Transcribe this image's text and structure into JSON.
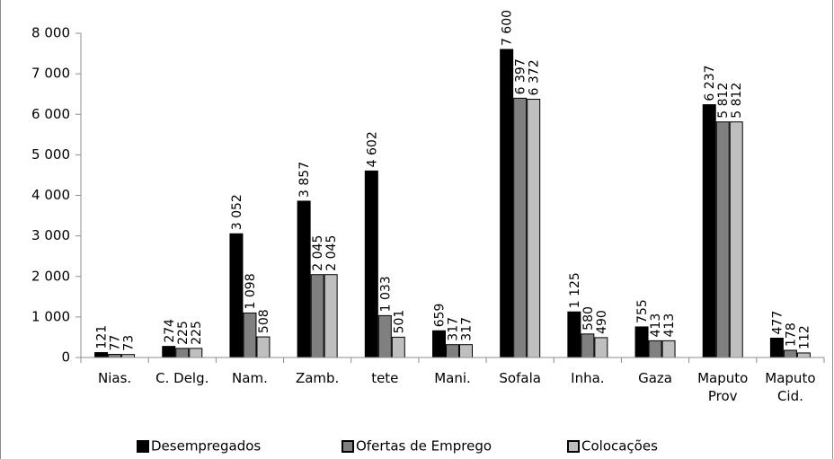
{
  "chart_data": {
    "type": "bar",
    "categories": [
      [
        "Nias."
      ],
      [
        "C. Delg."
      ],
      [
        "Nam."
      ],
      [
        "Zamb."
      ],
      [
        "tete"
      ],
      [
        "Mani."
      ],
      [
        "Sofala"
      ],
      [
        "Inha."
      ],
      [
        "Gaza"
      ],
      [
        "Maputo",
        "Prov"
      ],
      [
        "Maputo",
        "Cid."
      ]
    ],
    "series": [
      {
        "name": "Desempregados",
        "color": "#000000",
        "values": [
          121,
          274,
          3052,
          3857,
          4602,
          659,
          7600,
          1125,
          755,
          6237,
          477
        ],
        "labels": [
          "121",
          "274",
          "3 052",
          "3 857",
          "4 602",
          "659",
          "7 600",
          "1 125",
          "755",
          "6 237",
          "477"
        ]
      },
      {
        "name": "Ofertas de Emprego",
        "color": "#808080",
        "values": [
          77,
          225,
          1098,
          2045,
          1033,
          317,
          6397,
          580,
          413,
          5812,
          178
        ],
        "labels": [
          "77",
          "225",
          "1 098",
          "2 045",
          "1 033",
          "317",
          "6 397",
          "580",
          "413",
          "5 812",
          "178"
        ]
      },
      {
        "name": "Colocações",
        "color": "#bfbfbf",
        "values": [
          73,
          225,
          508,
          2045,
          501,
          317,
          6372,
          490,
          413,
          5812,
          112
        ],
        "labels": [
          "73",
          "225",
          "508",
          "2 045",
          "501",
          "317",
          "6 372",
          "490",
          "413",
          "5 812",
          "112"
        ]
      }
    ],
    "ylim": [
      0,
      8000
    ],
    "yticks": [
      0,
      1000,
      2000,
      3000,
      4000,
      5000,
      6000,
      7000,
      8000
    ],
    "ytick_labels": [
      "0",
      "1 000",
      "2 000",
      "3 000",
      "4 000",
      "5 000",
      "6 000",
      "7 000",
      "8 000"
    ],
    "title": "",
    "xlabel": "",
    "ylabel": "",
    "grid": false,
    "legend_position": "bottom"
  }
}
